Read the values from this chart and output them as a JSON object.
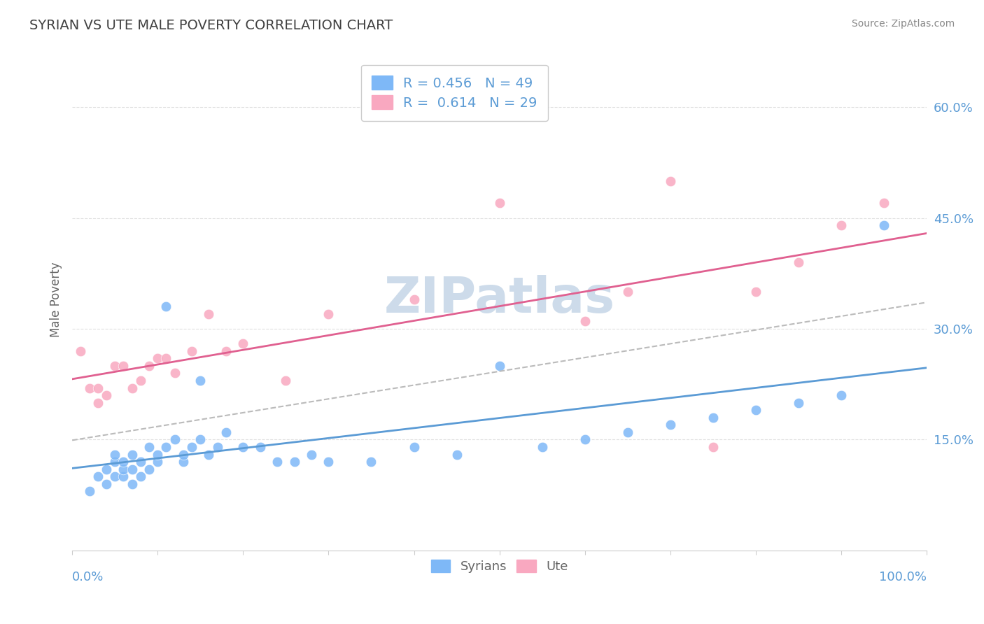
{
  "title": "SYRIAN VS UTE MALE POVERTY CORRELATION CHART",
  "source": "Source: ZipAtlas.com",
  "ylabel": "Male Poverty",
  "y_ticks": [
    0.15,
    0.3,
    0.45,
    0.6
  ],
  "y_tick_labels": [
    "15.0%",
    "30.0%",
    "45.0%",
    "60.0%"
  ],
  "x_range": [
    0.0,
    1.0
  ],
  "y_range": [
    0.0,
    0.68
  ],
  "syrians_R": 0.456,
  "syrians_N": 49,
  "ute_R": 0.614,
  "ute_N": 29,
  "syrian_color": "#7EB8F7",
  "ute_color": "#F9A8C0",
  "syrian_line_color": "#5B9BD5",
  "ute_line_color": "#E06090",
  "watermark": "ZIPatlas",
  "watermark_color": "#C8D8E8",
  "background_color": "#FFFFFF",
  "grid_color": "#E0E0E0",
  "title_color": "#404040",
  "axis_label_color": "#5B9BD5",
  "legend_R_color": "#5B9BD5",
  "syrians_x": [
    0.02,
    0.03,
    0.04,
    0.04,
    0.05,
    0.05,
    0.05,
    0.06,
    0.06,
    0.06,
    0.07,
    0.07,
    0.07,
    0.08,
    0.08,
    0.09,
    0.09,
    0.1,
    0.1,
    0.11,
    0.11,
    0.12,
    0.13,
    0.13,
    0.14,
    0.15,
    0.15,
    0.16,
    0.17,
    0.18,
    0.2,
    0.22,
    0.24,
    0.26,
    0.28,
    0.3,
    0.35,
    0.4,
    0.45,
    0.5,
    0.55,
    0.6,
    0.65,
    0.7,
    0.75,
    0.8,
    0.85,
    0.9,
    0.95
  ],
  "syrians_y": [
    0.08,
    0.1,
    0.09,
    0.11,
    0.1,
    0.12,
    0.13,
    0.1,
    0.11,
    0.12,
    0.09,
    0.11,
    0.13,
    0.1,
    0.12,
    0.11,
    0.14,
    0.12,
    0.13,
    0.14,
    0.33,
    0.15,
    0.12,
    0.13,
    0.14,
    0.23,
    0.15,
    0.13,
    0.14,
    0.16,
    0.14,
    0.14,
    0.12,
    0.12,
    0.13,
    0.12,
    0.12,
    0.14,
    0.13,
    0.25,
    0.14,
    0.15,
    0.16,
    0.17,
    0.18,
    0.19,
    0.2,
    0.21,
    0.44
  ],
  "ute_x": [
    0.01,
    0.02,
    0.03,
    0.03,
    0.04,
    0.05,
    0.06,
    0.07,
    0.08,
    0.09,
    0.1,
    0.11,
    0.12,
    0.14,
    0.16,
    0.18,
    0.2,
    0.25,
    0.3,
    0.4,
    0.5,
    0.6,
    0.65,
    0.7,
    0.75,
    0.8,
    0.85,
    0.9,
    0.95
  ],
  "ute_y": [
    0.27,
    0.22,
    0.2,
    0.22,
    0.21,
    0.25,
    0.25,
    0.22,
    0.23,
    0.25,
    0.26,
    0.26,
    0.24,
    0.27,
    0.32,
    0.27,
    0.28,
    0.23,
    0.32,
    0.34,
    0.47,
    0.31,
    0.35,
    0.5,
    0.14,
    0.35,
    0.39,
    0.44,
    0.47
  ]
}
